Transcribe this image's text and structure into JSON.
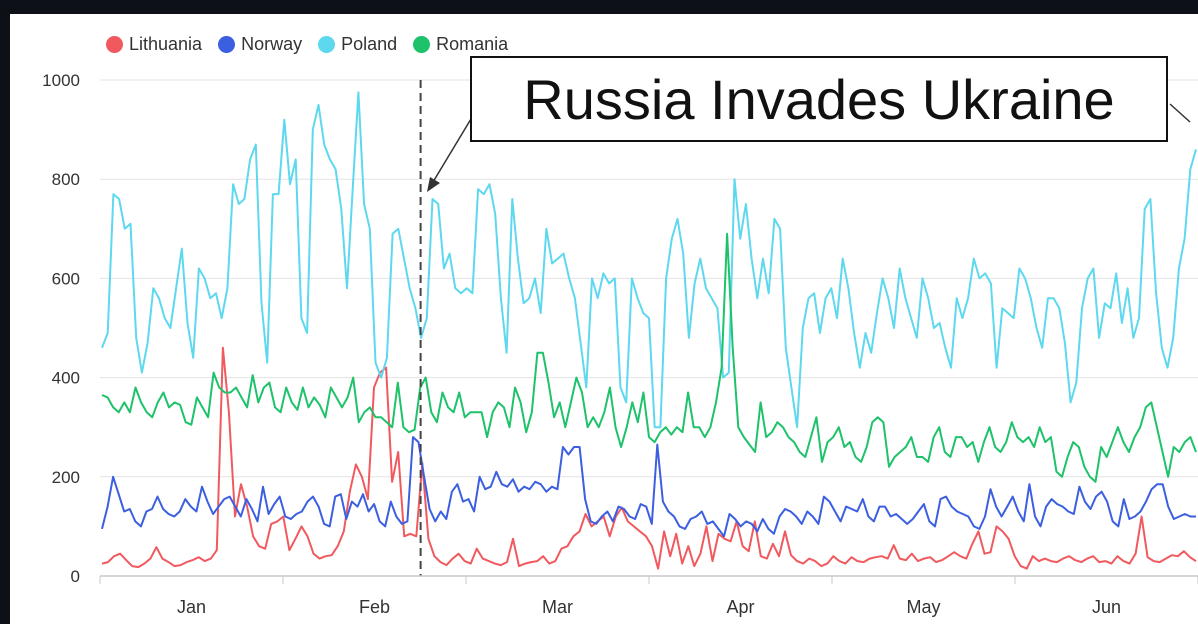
{
  "chart_data": {
    "type": "line",
    "x_labels": [
      "Jan",
      "Feb",
      "Mar",
      "Apr",
      "May",
      "Jun"
    ],
    "y_ticks": [
      0,
      200,
      400,
      600,
      800,
      1000
    ],
    "ylim": [
      0,
      1000
    ],
    "grid": "horizontal",
    "legend_position": "top-left",
    "series": [
      {
        "name": "Lithuania",
        "color": "#f05a5f",
        "values": [
          25,
          28,
          40,
          45,
          32,
          20,
          18,
          25,
          35,
          58,
          35,
          28,
          20,
          22,
          28,
          32,
          38,
          30,
          35,
          52,
          460,
          330,
          120,
          185,
          140,
          80,
          60,
          55,
          105,
          110,
          120,
          52,
          75,
          100,
          80,
          45,
          35,
          40,
          42,
          60,
          90,
          170,
          225,
          200,
          155,
          380,
          410,
          420,
          190,
          250,
          80,
          85,
          80,
          228,
          75,
          40,
          28,
          22,
          35,
          45,
          30,
          25,
          55,
          35,
          30,
          25,
          22,
          28,
          75,
          20,
          25,
          28,
          30,
          40,
          25,
          30,
          55,
          60,
          80,
          90,
          125,
          100,
          110,
          120,
          80,
          120,
          138,
          110,
          100,
          90,
          80,
          60,
          15,
          90,
          40,
          85,
          25,
          60,
          20,
          45,
          100,
          30,
          85,
          75,
          70,
          110,
          60,
          50,
          110,
          40,
          35,
          65,
          40,
          90,
          42,
          30,
          25,
          35,
          30,
          20,
          25,
          40,
          30,
          25,
          38,
          30,
          28,
          35,
          38,
          40,
          35,
          62,
          35,
          32,
          45,
          30,
          35,
          38,
          28,
          32,
          40,
          48,
          40,
          35,
          65,
          90,
          45,
          48,
          100,
          90,
          75,
          40,
          20,
          15,
          40,
          30,
          35,
          30,
          28,
          35,
          40,
          32,
          28,
          35,
          40,
          28,
          30,
          25,
          40,
          30,
          25,
          45,
          120,
          38,
          30,
          28,
          35,
          42,
          40,
          50,
          38,
          30
        ]
      },
      {
        "name": "Norway",
        "color": "#3b5fe0",
        "values": [
          95,
          140,
          200,
          165,
          130,
          135,
          110,
          100,
          130,
          135,
          160,
          135,
          125,
          120,
          130,
          155,
          140,
          130,
          180,
          150,
          125,
          140,
          155,
          160,
          140,
          120,
          155,
          135,
          110,
          180,
          125,
          145,
          160,
          120,
          115,
          125,
          130,
          150,
          160,
          140,
          105,
          100,
          160,
          165,
          115,
          150,
          140,
          165,
          130,
          145,
          110,
          100,
          150,
          120,
          105,
          110,
          280,
          270,
          200,
          135,
          110,
          130,
          115,
          170,
          185,
          150,
          155,
          130,
          200,
          175,
          180,
          210,
          185,
          180,
          195,
          170,
          180,
          175,
          190,
          185,
          170,
          180,
          175,
          260,
          245,
          260,
          260,
          155,
          110,
          105,
          120,
          130,
          110,
          140,
          135,
          120,
          115,
          145,
          140,
          105,
          265,
          150,
          130,
          120,
          100,
          95,
          115,
          120,
          130,
          105,
          110,
          95,
          80,
          125,
          115,
          100,
          110,
          105,
          90,
          115,
          95,
          85,
          120,
          135,
          130,
          120,
          105,
          130,
          120,
          105,
          160,
          150,
          130,
          110,
          140,
          135,
          130,
          155,
          120,
          110,
          140,
          140,
          120,
          125,
          115,
          105,
          115,
          130,
          145,
          110,
          100,
          155,
          160,
          140,
          130,
          125,
          120,
          100,
          95,
          120,
          175,
          140,
          120,
          140,
          160,
          130,
          110,
          185,
          120,
          100,
          140,
          155,
          145,
          140,
          130,
          125,
          180,
          150,
          135,
          160,
          170,
          150,
          110,
          100,
          155,
          115,
          120,
          130,
          150,
          175,
          185,
          185,
          140,
          115,
          120,
          125,
          120,
          120
        ]
      },
      {
        "name": "Poland",
        "color": "#5dd8ee",
        "values": [
          460,
          490,
          770,
          760,
          700,
          710,
          480,
          410,
          470,
          580,
          560,
          520,
          500,
          580,
          660,
          510,
          440,
          620,
          600,
          560,
          570,
          520,
          580,
          790,
          750,
          760,
          840,
          870,
          550,
          430,
          770,
          770,
          920,
          790,
          840,
          520,
          490,
          900,
          950,
          870,
          840,
          820,
          740,
          580,
          780,
          975,
          750,
          700,
          430,
          400,
          440,
          690,
          700,
          640,
          580,
          540,
          480,
          520,
          760,
          750,
          620,
          650,
          580,
          570,
          580,
          570,
          780,
          770,
          790,
          730,
          560,
          450,
          760,
          640,
          550,
          560,
          600,
          530,
          700,
          630,
          640,
          650,
          600,
          560,
          470,
          380,
          600,
          560,
          610,
          590,
          600,
          380,
          350,
          600,
          560,
          530,
          520,
          300,
          300,
          600,
          680,
          720,
          650,
          480,
          590,
          640,
          580,
          560,
          540,
          400,
          410,
          800,
          680,
          750,
          640,
          560,
          640,
          570,
          720,
          700,
          460,
          380,
          300,
          500,
          560,
          570,
          490,
          560,
          580,
          520,
          640,
          580,
          490,
          420,
          490,
          450,
          530,
          600,
          560,
          500,
          620,
          560,
          520,
          480,
          600,
          560,
          500,
          510,
          460,
          420,
          560,
          520,
          560,
          640,
          600,
          610,
          590,
          420,
          540,
          530,
          520,
          620,
          600,
          560,
          500,
          460,
          560,
          560,
          540,
          470,
          350,
          390,
          540,
          600,
          620,
          480,
          550,
          540,
          610,
          510,
          580,
          480,
          520,
          740,
          760,
          570,
          460,
          420,
          480,
          620,
          680,
          820,
          860
        ]
      },
      {
        "name": "Romania",
        "color": "#1ec26a",
        "values": [
          365,
          360,
          340,
          330,
          350,
          330,
          380,
          350,
          330,
          320,
          350,
          370,
          340,
          350,
          345,
          310,
          305,
          360,
          340,
          320,
          410,
          380,
          370,
          370,
          380,
          360,
          340,
          405,
          350,
          380,
          390,
          340,
          330,
          380,
          350,
          335,
          380,
          340,
          360,
          345,
          320,
          380,
          360,
          340,
          360,
          400,
          310,
          330,
          340,
          320,
          320,
          310,
          300,
          390,
          300,
          290,
          295,
          380,
          400,
          330,
          310,
          370,
          340,
          330,
          370,
          320,
          330,
          330,
          330,
          280,
          330,
          350,
          340,
          300,
          380,
          350,
          290,
          330,
          450,
          450,
          390,
          320,
          350,
          300,
          350,
          400,
          370,
          300,
          320,
          300,
          330,
          380,
          300,
          260,
          300,
          350,
          310,
          370,
          280,
          270,
          290,
          300,
          285,
          300,
          290,
          370,
          300,
          300,
          280,
          300,
          350,
          420,
          690,
          460,
          300,
          280,
          265,
          250,
          350,
          280,
          290,
          310,
          300,
          280,
          270,
          250,
          240,
          280,
          320,
          230,
          270,
          280,
          300,
          260,
          270,
          240,
          230,
          260,
          310,
          320,
          310,
          220,
          240,
          250,
          260,
          280,
          240,
          240,
          230,
          280,
          300,
          250,
          240,
          280,
          280,
          260,
          270,
          230,
          270,
          300,
          260,
          250,
          270,
          310,
          280,
          270,
          280,
          260,
          300,
          270,
          280,
          210,
          200,
          240,
          270,
          260,
          220,
          200,
          190,
          260,
          240,
          270,
          300,
          270,
          250,
          280,
          300,
          340,
          350,
          300,
          250,
          200,
          260,
          250,
          270,
          280,
          250
        ]
      }
    ]
  },
  "annotation": {
    "text": "Russia Invades Ukraine",
    "event_x_fraction": 0.292
  }
}
